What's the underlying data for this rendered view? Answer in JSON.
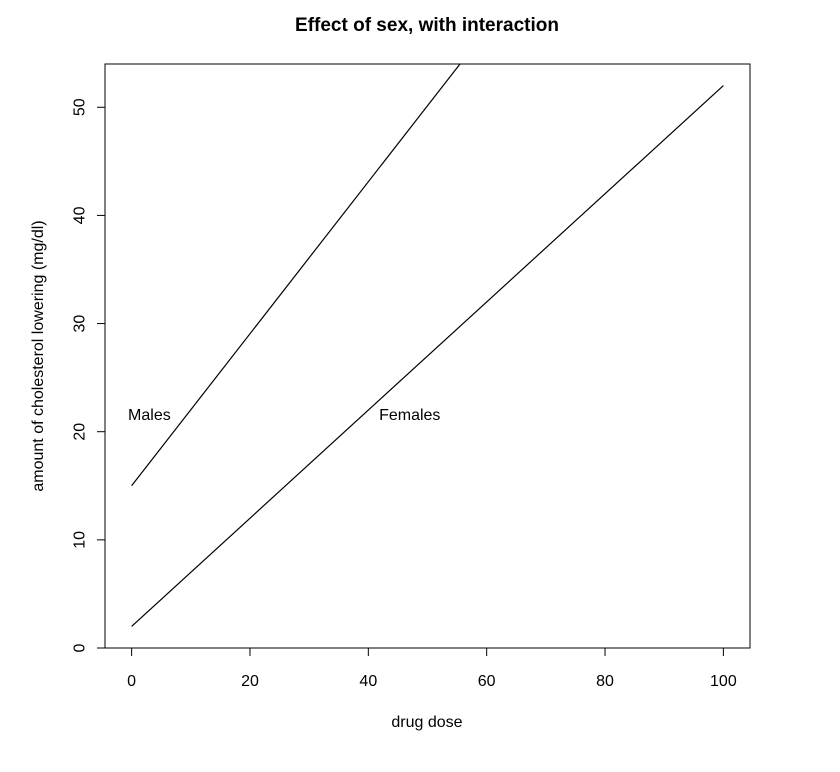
{
  "chart_data": {
    "type": "line",
    "title": "Effect of sex, with interaction",
    "xlabel": "drug dose",
    "ylabel": "amount of cholesterol lowering (mg/dl)",
    "xlim": [
      -4.5,
      104.5
    ],
    "ylim": [
      0,
      54
    ],
    "xticks": [
      0,
      20,
      40,
      60,
      80,
      100
    ],
    "yticks": [
      0,
      10,
      20,
      30,
      40,
      50
    ],
    "xtick_labels": [
      "0",
      "20",
      "40",
      "60",
      "80",
      "100"
    ],
    "ytick_labels": [
      "0",
      "10",
      "20",
      "30",
      "40",
      "50"
    ],
    "grid": false,
    "legend": "none",
    "series": [
      {
        "x": [
          0,
          55.5
        ],
        "y": [
          15,
          54
        ],
        "color": "#000000"
      },
      {
        "x": [
          0,
          100
        ],
        "y": [
          2,
          52
        ],
        "color": "#000000"
      }
    ],
    "annotations": [
      {
        "text": "Males",
        "x": 3,
        "y": 21.5
      },
      {
        "text": "Females",
        "x": 47,
        "y": 21.5
      }
    ]
  }
}
